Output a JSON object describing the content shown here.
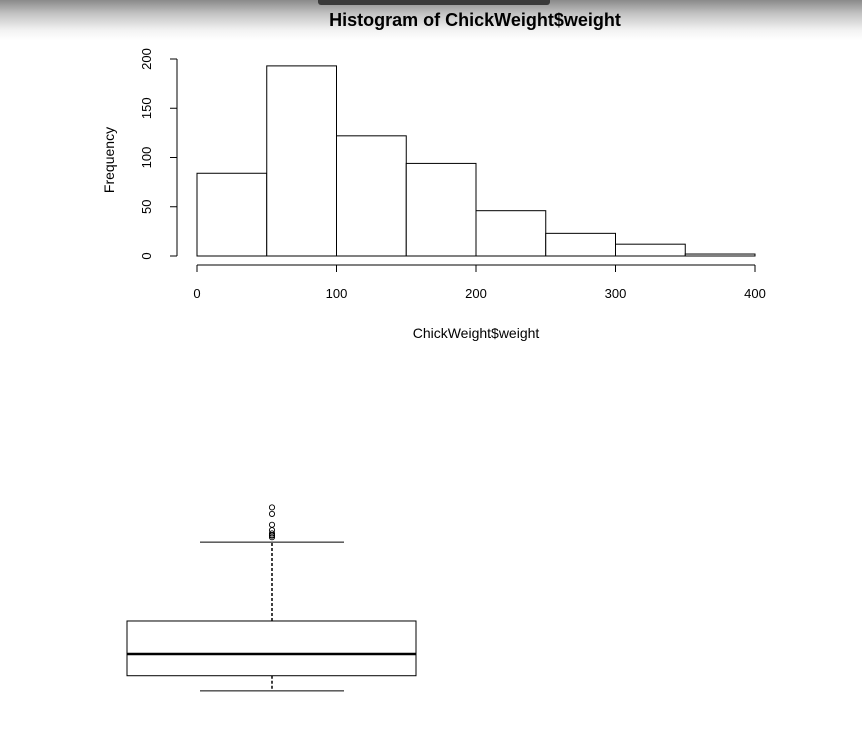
{
  "chart_data": [
    {
      "type": "bar",
      "subtype": "histogram",
      "title": "Histogram of ChickWeight$weight",
      "xlabel": "ChickWeight$weight",
      "ylabel": "Frequency",
      "bins": [
        [
          0,
          50
        ],
        [
          50,
          100
        ],
        [
          100,
          150
        ],
        [
          150,
          200
        ],
        [
          200,
          250
        ],
        [
          250,
          300
        ],
        [
          300,
          350
        ],
        [
          350,
          400
        ]
      ],
      "values": [
        84,
        193,
        122,
        94,
        46,
        23,
        12,
        2
      ],
      "xlim": [
        0,
        400
      ],
      "ylim": [
        0,
        200
      ],
      "x_ticks": [
        0,
        100,
        200,
        300,
        400
      ],
      "y_ticks": [
        0,
        50,
        100,
        150,
        200
      ],
      "x_tick_labels": [
        "0",
        "100",
        "200",
        "300",
        "400"
      ],
      "y_tick_labels": [
        "0",
        "50",
        "100",
        "150",
        "200"
      ],
      "grid": false
    },
    {
      "type": "boxplot",
      "orientation": "vertical",
      "min_whisker": 35,
      "q1": 63,
      "median": 103,
      "q3": 163.8,
      "max_whisker": 309,
      "outliers": [
        318,
        321,
        322,
        325,
        331,
        341,
        361,
        373
      ],
      "grid": false
    }
  ],
  "colors": {
    "bar_fill": "#ffffff",
    "stroke": "#000000",
    "background": "#ffffff",
    "top_bar": "#b8b8b8"
  }
}
